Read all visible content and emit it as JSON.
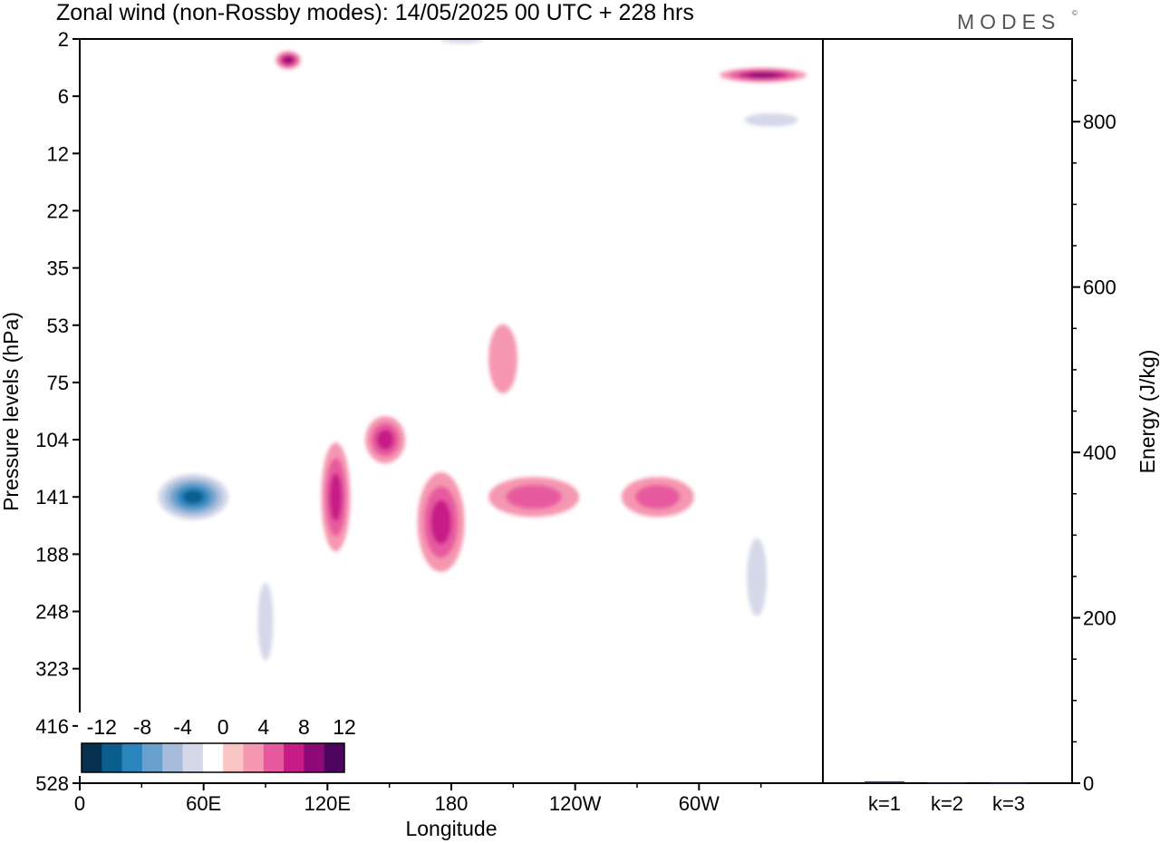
{
  "title": "Zonal wind (non-Rossby modes):  14/05/2025  00 UTC  + 228 hrs",
  "brand": "MODES",
  "brand_mark": "©",
  "chart_data": [
    {
      "type": "heatmap",
      "subtype": "filled-contour longitude-pressure section",
      "xlabel": "Longitude",
      "ylabel": "Pressure levels (hPa)",
      "x_tick_labels": [
        "0",
        "60E",
        "120E",
        "180",
        "120W",
        "60W"
      ],
      "x_tick_values_deg": [
        0,
        60,
        120,
        180,
        240,
        300
      ],
      "xlim_deg": [
        0,
        360
      ],
      "y_levels_hPa": [
        "2",
        "6",
        "12",
        "22",
        "35",
        "53",
        "75",
        "104",
        "141",
        "188",
        "248",
        "323",
        "416",
        "528"
      ],
      "y_direction": "pressure increases downward",
      "colorbar": {
        "tick_labels": [
          "-12",
          "-8",
          "-4",
          "0",
          "4",
          "8",
          "12"
        ],
        "levels": [
          -14,
          -12,
          -10,
          -8,
          -6,
          -4,
          -2,
          2,
          4,
          6,
          8,
          10,
          12,
          14
        ],
        "colors": [
          "#08304f",
          "#0a5e8c",
          "#2b86bd",
          "#6aa0cc",
          "#a7bcdb",
          "#d4d8e8",
          "#ffffff",
          "#fbc4c4",
          "#f597b0",
          "#e85aa0",
          "#c71c87",
          "#8e0a78",
          "#4d0560"
        ]
      },
      "features": [
        {
          "sign": "negative",
          "peak_value": -12,
          "lon_deg": 55,
          "pressure_hPa": 141
        },
        {
          "sign": "negative",
          "peak_value": -4,
          "lon_deg": 185,
          "pressure_hPa": 2
        },
        {
          "sign": "negative",
          "peak_value": -4,
          "lon_deg": 335,
          "pressure_hPa": 8
        },
        {
          "sign": "negative",
          "peak_value": -4,
          "lon_deg": 90,
          "pressure_hPa": 260
        },
        {
          "sign": "negative",
          "peak_value": -4,
          "lon_deg": 328,
          "pressure_hPa": 210
        },
        {
          "sign": "positive",
          "peak_value": 6,
          "lon_deg": 148,
          "pressure_hPa": 104
        },
        {
          "sign": "positive",
          "peak_value": 6,
          "lon_deg": 124,
          "pressure_hPa": 141
        },
        {
          "sign": "positive",
          "peak_value": 6,
          "lon_deg": 175,
          "pressure_hPa": 160
        },
        {
          "sign": "positive",
          "peak_value": 4,
          "lon_deg": 220,
          "pressure_hPa": 141
        },
        {
          "sign": "positive",
          "peak_value": 4,
          "lon_deg": 280,
          "pressure_hPa": 141
        },
        {
          "sign": "positive",
          "peak_value": 8,
          "lon_deg": 101,
          "pressure_hPa": 3
        },
        {
          "sign": "positive",
          "peak_value": 8,
          "lon_deg": 331,
          "pressure_hPa": 4
        },
        {
          "sign": "positive",
          "peak_value": 2,
          "lon_deg": 205,
          "pressure_hPa": 65
        }
      ]
    },
    {
      "type": "bar",
      "categories": [
        "k=1",
        "k=2",
        "k=3"
      ],
      "values": [
        2,
        1,
        0.5
      ],
      "ylabel": "Energy (J/kg)",
      "ylim": [
        0,
        900
      ],
      "y_ticks": [
        "0",
        "200",
        "400",
        "600",
        "800"
      ],
      "bar_color": "#1a1a3a"
    }
  ]
}
